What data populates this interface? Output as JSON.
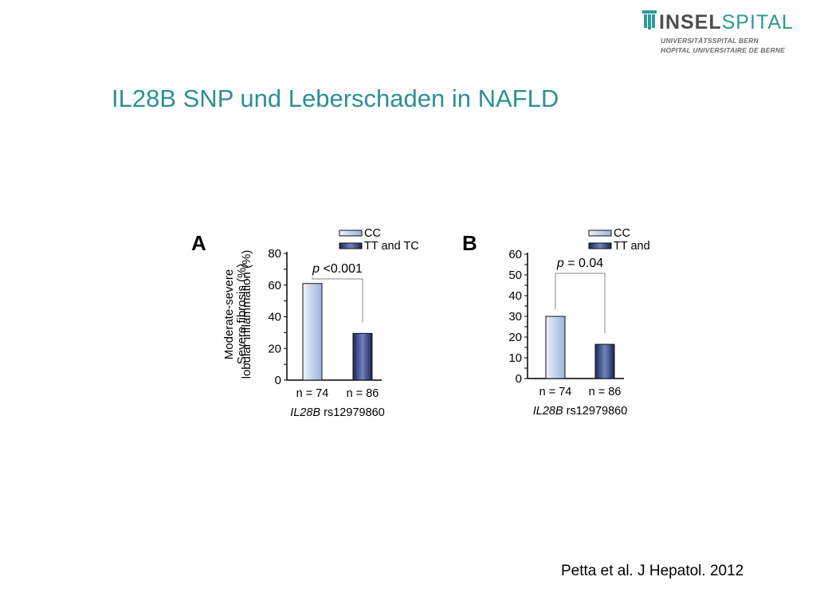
{
  "header": {
    "logo": {
      "word_bold": "INSEL",
      "word_light": "SPITAL",
      "line1": "UNIVERSITÄTSSPITAL BERN",
      "line2": "HOPITAL UNIVERSITAIRE DE BERNE"
    }
  },
  "slide": {
    "title": "IL28B SNP und Leberschaden in NAFLD",
    "citation": "Petta et al. J Hepatol. 2012"
  },
  "colors": {
    "title": "#2e8f96",
    "bar_cc": "#c3d2ec",
    "bar_tt": "#2a3c72"
  },
  "chart_data": [
    {
      "type": "bar",
      "panel": "A",
      "ylabel": "Moderate-severe lobular inflammation (%)",
      "ylim": [
        0,
        80
      ],
      "yticks": [
        0,
        20,
        40,
        60,
        80
      ],
      "categories": [
        "n = 74",
        "n = 86"
      ],
      "xlabel_italic": "IL28B",
      "xlabel": "rs12979860",
      "legend": [
        "CC",
        "TT and TC"
      ],
      "legend_position": "top-right",
      "values": [
        61,
        29.5
      ],
      "annotation": {
        "p": "p",
        "text": "<0.001"
      }
    },
    {
      "type": "bar",
      "panel": "B",
      "ylabel": "Severe fibrosis (%)",
      "ylim": [
        0,
        60
      ],
      "yticks": [
        0,
        10,
        20,
        30,
        40,
        50,
        60
      ],
      "categories": [
        "n = 74",
        "n = 86"
      ],
      "xlabel_italic": "IL28B",
      "xlabel": "rs12979860",
      "legend": [
        "CC",
        "TT and"
      ],
      "legend_position": "top-right",
      "values": [
        30,
        16.5
      ],
      "annotation": {
        "p": "p",
        "text": "= 0.04"
      }
    }
  ]
}
